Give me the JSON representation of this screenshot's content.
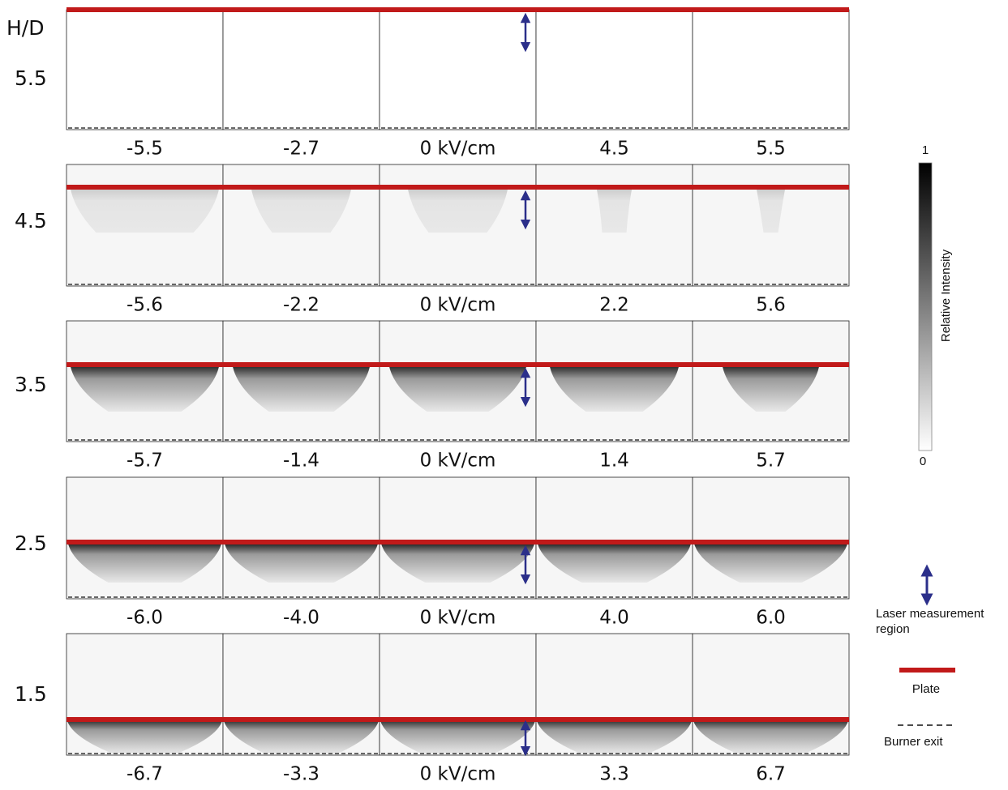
{
  "header": {
    "label": "H/D"
  },
  "rows": [
    {
      "hd": "5.5",
      "fields": [
        "-5.5",
        "-2.7",
        "0 kV/cm",
        "4.5",
        "5.5"
      ]
    },
    {
      "hd": "4.5",
      "fields": [
        "-5.6",
        "-2.2",
        "0 kV/cm",
        "2.2",
        "5.6"
      ]
    },
    {
      "hd": "3.5",
      "fields": [
        "-5.7",
        "-1.4",
        "0 kV/cm",
        "1.4",
        "5.7"
      ]
    },
    {
      "hd": "2.5",
      "fields": [
        "-6.0",
        "-4.0",
        "0 kV/cm",
        "4.0",
        "6.0"
      ]
    },
    {
      "hd": "1.5",
      "fields": [
        "-6.7",
        "-3.3",
        "0 kV/cm",
        "3.3",
        "6.7"
      ]
    }
  ],
  "colorbar": {
    "max": "1",
    "min": "0",
    "label": "Relative Intensity"
  },
  "legend": {
    "laser": "Laser measurement region",
    "plate": "Plate",
    "burner": "Burner exit"
  }
}
